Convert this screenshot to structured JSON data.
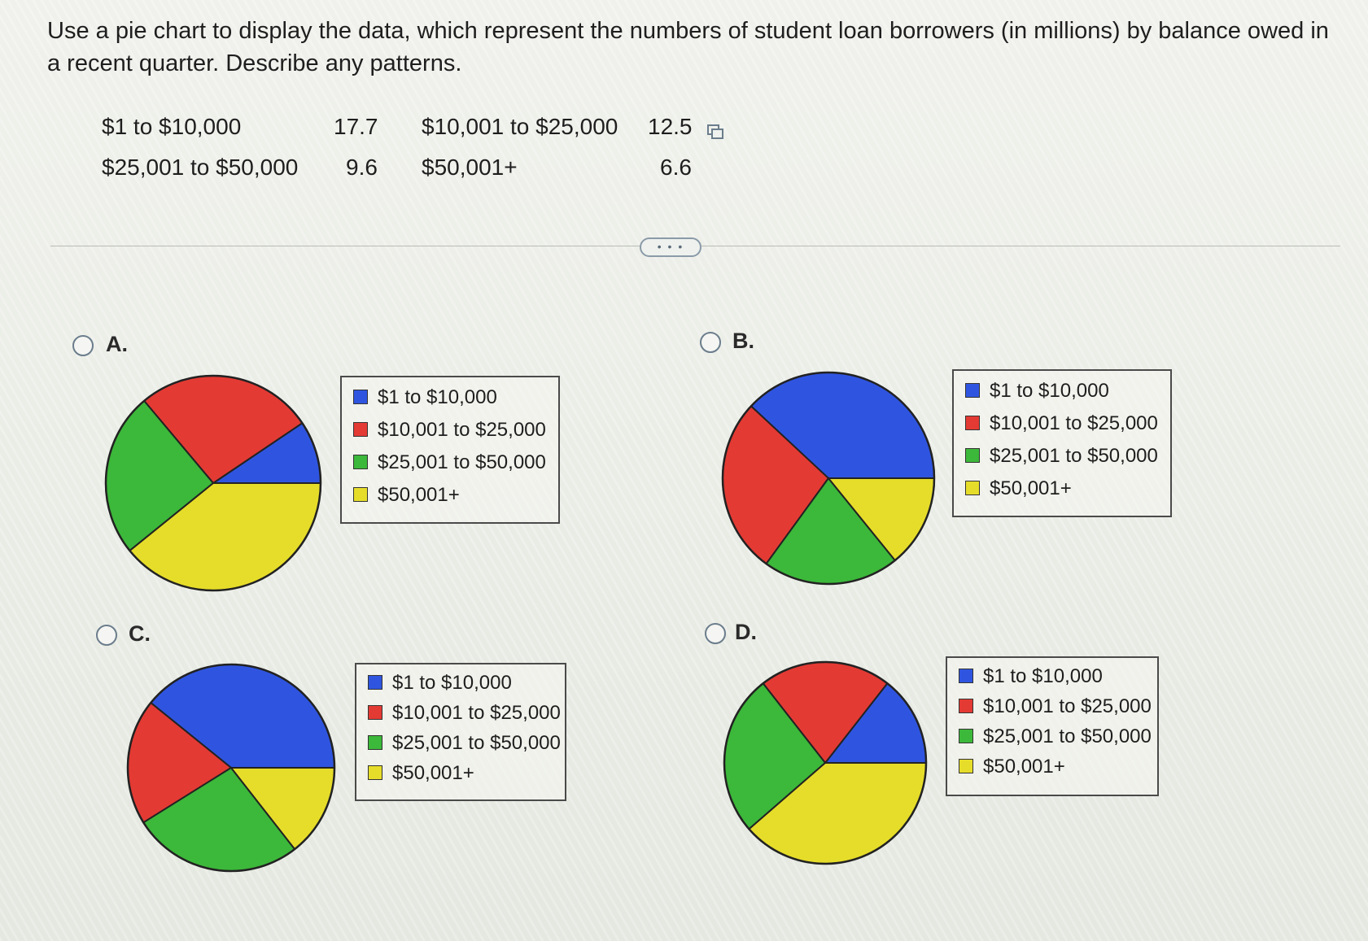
{
  "question": {
    "text": "Use a pie chart to display the data, which represent the numbers of student loan borrowers (in millions) by balance owed in a recent quarter. Describe any patterns."
  },
  "table": [
    {
      "label": "$1 to $10,000",
      "value": "17.7"
    },
    {
      "label": "$10,001 to $25,000",
      "value": "12.5"
    },
    {
      "label": "$25,001 to $50,000",
      "value": "9.6"
    },
    {
      "label": "$50,001+",
      "value": "6.6"
    }
  ],
  "more_button": "• • •",
  "colors": {
    "blue": "#2f55e0",
    "red": "#e43a34",
    "green": "#3cb83a",
    "yellow": "#e6dd2a"
  },
  "options": [
    {
      "letter": "A.",
      "legend": [
        "$1 to $10,000",
        "$10,001 to $25,000",
        "$25,001 to $50,000",
        "$50,001+"
      ],
      "chart_data": {
        "type": "pie",
        "slices": [
          {
            "category": "$1 to $10,000",
            "start_angle": 0,
            "end_angle": 34,
            "color": "blue"
          },
          {
            "category": "$10,001 to $25,000",
            "start_angle": 34,
            "end_angle": 130,
            "color": "red"
          },
          {
            "category": "$25,001 to $50,000",
            "start_angle": 130,
            "end_angle": 219,
            "color": "green"
          },
          {
            "category": "$50,001+",
            "start_angle": 219,
            "end_angle": 360,
            "color": "yellow"
          }
        ]
      }
    },
    {
      "letter": "B.",
      "legend": [
        "$1 to $10,000",
        "$10,001 to $25,000",
        "$25,001 to $50,000",
        "$50,001+"
      ],
      "chart_data": {
        "type": "pie",
        "slices": [
          {
            "category": "$1 to $10,000",
            "start_angle": 0,
            "end_angle": 137,
            "color": "blue"
          },
          {
            "category": "$10,001 to $25,000",
            "start_angle": 137,
            "end_angle": 234,
            "color": "red"
          },
          {
            "category": "$25,001 to $50,000",
            "start_angle": 234,
            "end_angle": 309,
            "color": "green"
          },
          {
            "category": "$50,001+",
            "start_angle": 309,
            "end_angle": 360,
            "color": "yellow"
          }
        ]
      }
    },
    {
      "letter": "C.",
      "legend": [
        "$1 to $10,000",
        "$10,001 to $25,000",
        "$25,001 to $50,000",
        "$50,001+"
      ],
      "chart_data": {
        "type": "pie",
        "slices": [
          {
            "category": "$1 to $10,000",
            "start_angle": 0,
            "end_angle": 141,
            "color": "blue"
          },
          {
            "category": "$10,001 to $25,000",
            "start_angle": 141,
            "end_angle": 212,
            "color": "red"
          },
          {
            "category": "$25,001 to $50,000",
            "start_angle": 212,
            "end_angle": 308,
            "color": "green"
          },
          {
            "category": "$50,001+",
            "start_angle": 308,
            "end_angle": 360,
            "color": "yellow"
          }
        ]
      }
    },
    {
      "letter": "D.",
      "legend": [
        "$1 to $10,000",
        "$10,001 to $25,000",
        "$25,001 to $50,000",
        "$50,001+"
      ],
      "chart_data": {
        "type": "pie",
        "slices": [
          {
            "category": "$1 to $10,000",
            "start_angle": 0,
            "end_angle": 52,
            "color": "blue"
          },
          {
            "category": "$10,001 to $25,000",
            "start_angle": 52,
            "end_angle": 128,
            "color": "red"
          },
          {
            "category": "$25,001 to $50,000",
            "start_angle": 128,
            "end_angle": 221,
            "color": "green"
          },
          {
            "category": "$50,001+",
            "start_angle": 221,
            "end_angle": 360,
            "color": "yellow"
          }
        ]
      }
    }
  ]
}
